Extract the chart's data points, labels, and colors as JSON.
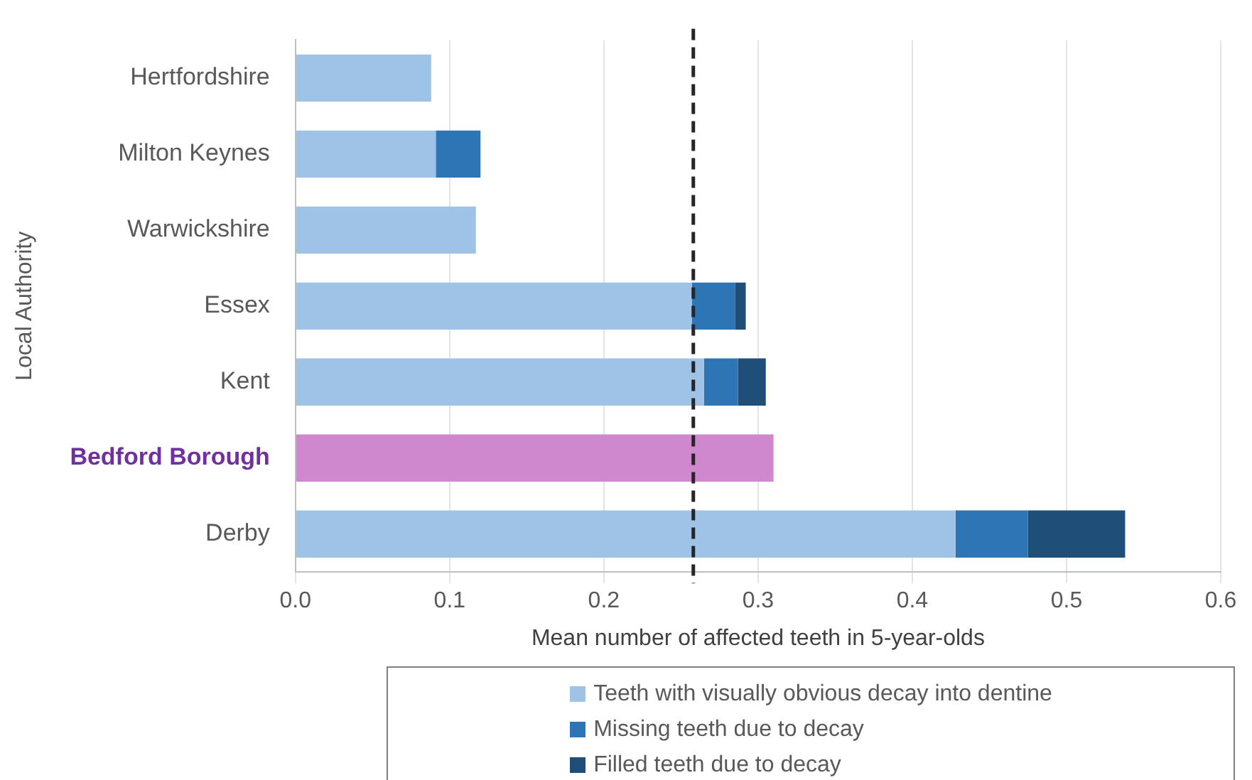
{
  "chart_data": {
    "type": "bar",
    "orientation": "horizontal",
    "stacked": true,
    "xlabel": "Mean number of affected teeth in 5-year-olds",
    "ylabel": "Local Authority",
    "categories": [
      "Hertfordshire",
      "Milton Keynes",
      "Warwickshire",
      "Essex",
      "Kent",
      "Bedford Borough",
      "Derby"
    ],
    "series": [
      {
        "name": "Teeth with visually obvious decay into dentine",
        "color": "#9fc3e6",
        "colors": [
          "#9fc3e6",
          "#9fc3e6",
          "#9fc3e6",
          "#9fc3e6",
          "#9fc3e6",
          "#cf88cd",
          "#9fc3e6"
        ],
        "values": [
          0.088,
          0.091,
          0.117,
          0.257,
          0.265,
          0.31,
          0.428
        ]
      },
      {
        "name": "Missing teeth due to decay",
        "color": "#2e75b6",
        "values": [
          null,
          0.029,
          null,
          0.028,
          0.022,
          null,
          0.047
        ]
      },
      {
        "name": "Filled teeth due to decay",
        "color": "#1f4e79",
        "values": [
          null,
          null,
          null,
          0.007,
          0.018,
          null,
          0.063
        ]
      }
    ],
    "xlim": [
      0,
      0.6
    ],
    "xticks": [
      {
        "value": 0,
        "label": "0.0"
      },
      0.1,
      0.2,
      0.3,
      0.4,
      0.5,
      0.6
    ],
    "ref_lines": [
      {
        "axis": "x",
        "value": 0.258,
        "color": "#262626",
        "line_style": "dashed"
      }
    ],
    "grid": "x",
    "legend": "bottom"
  }
}
